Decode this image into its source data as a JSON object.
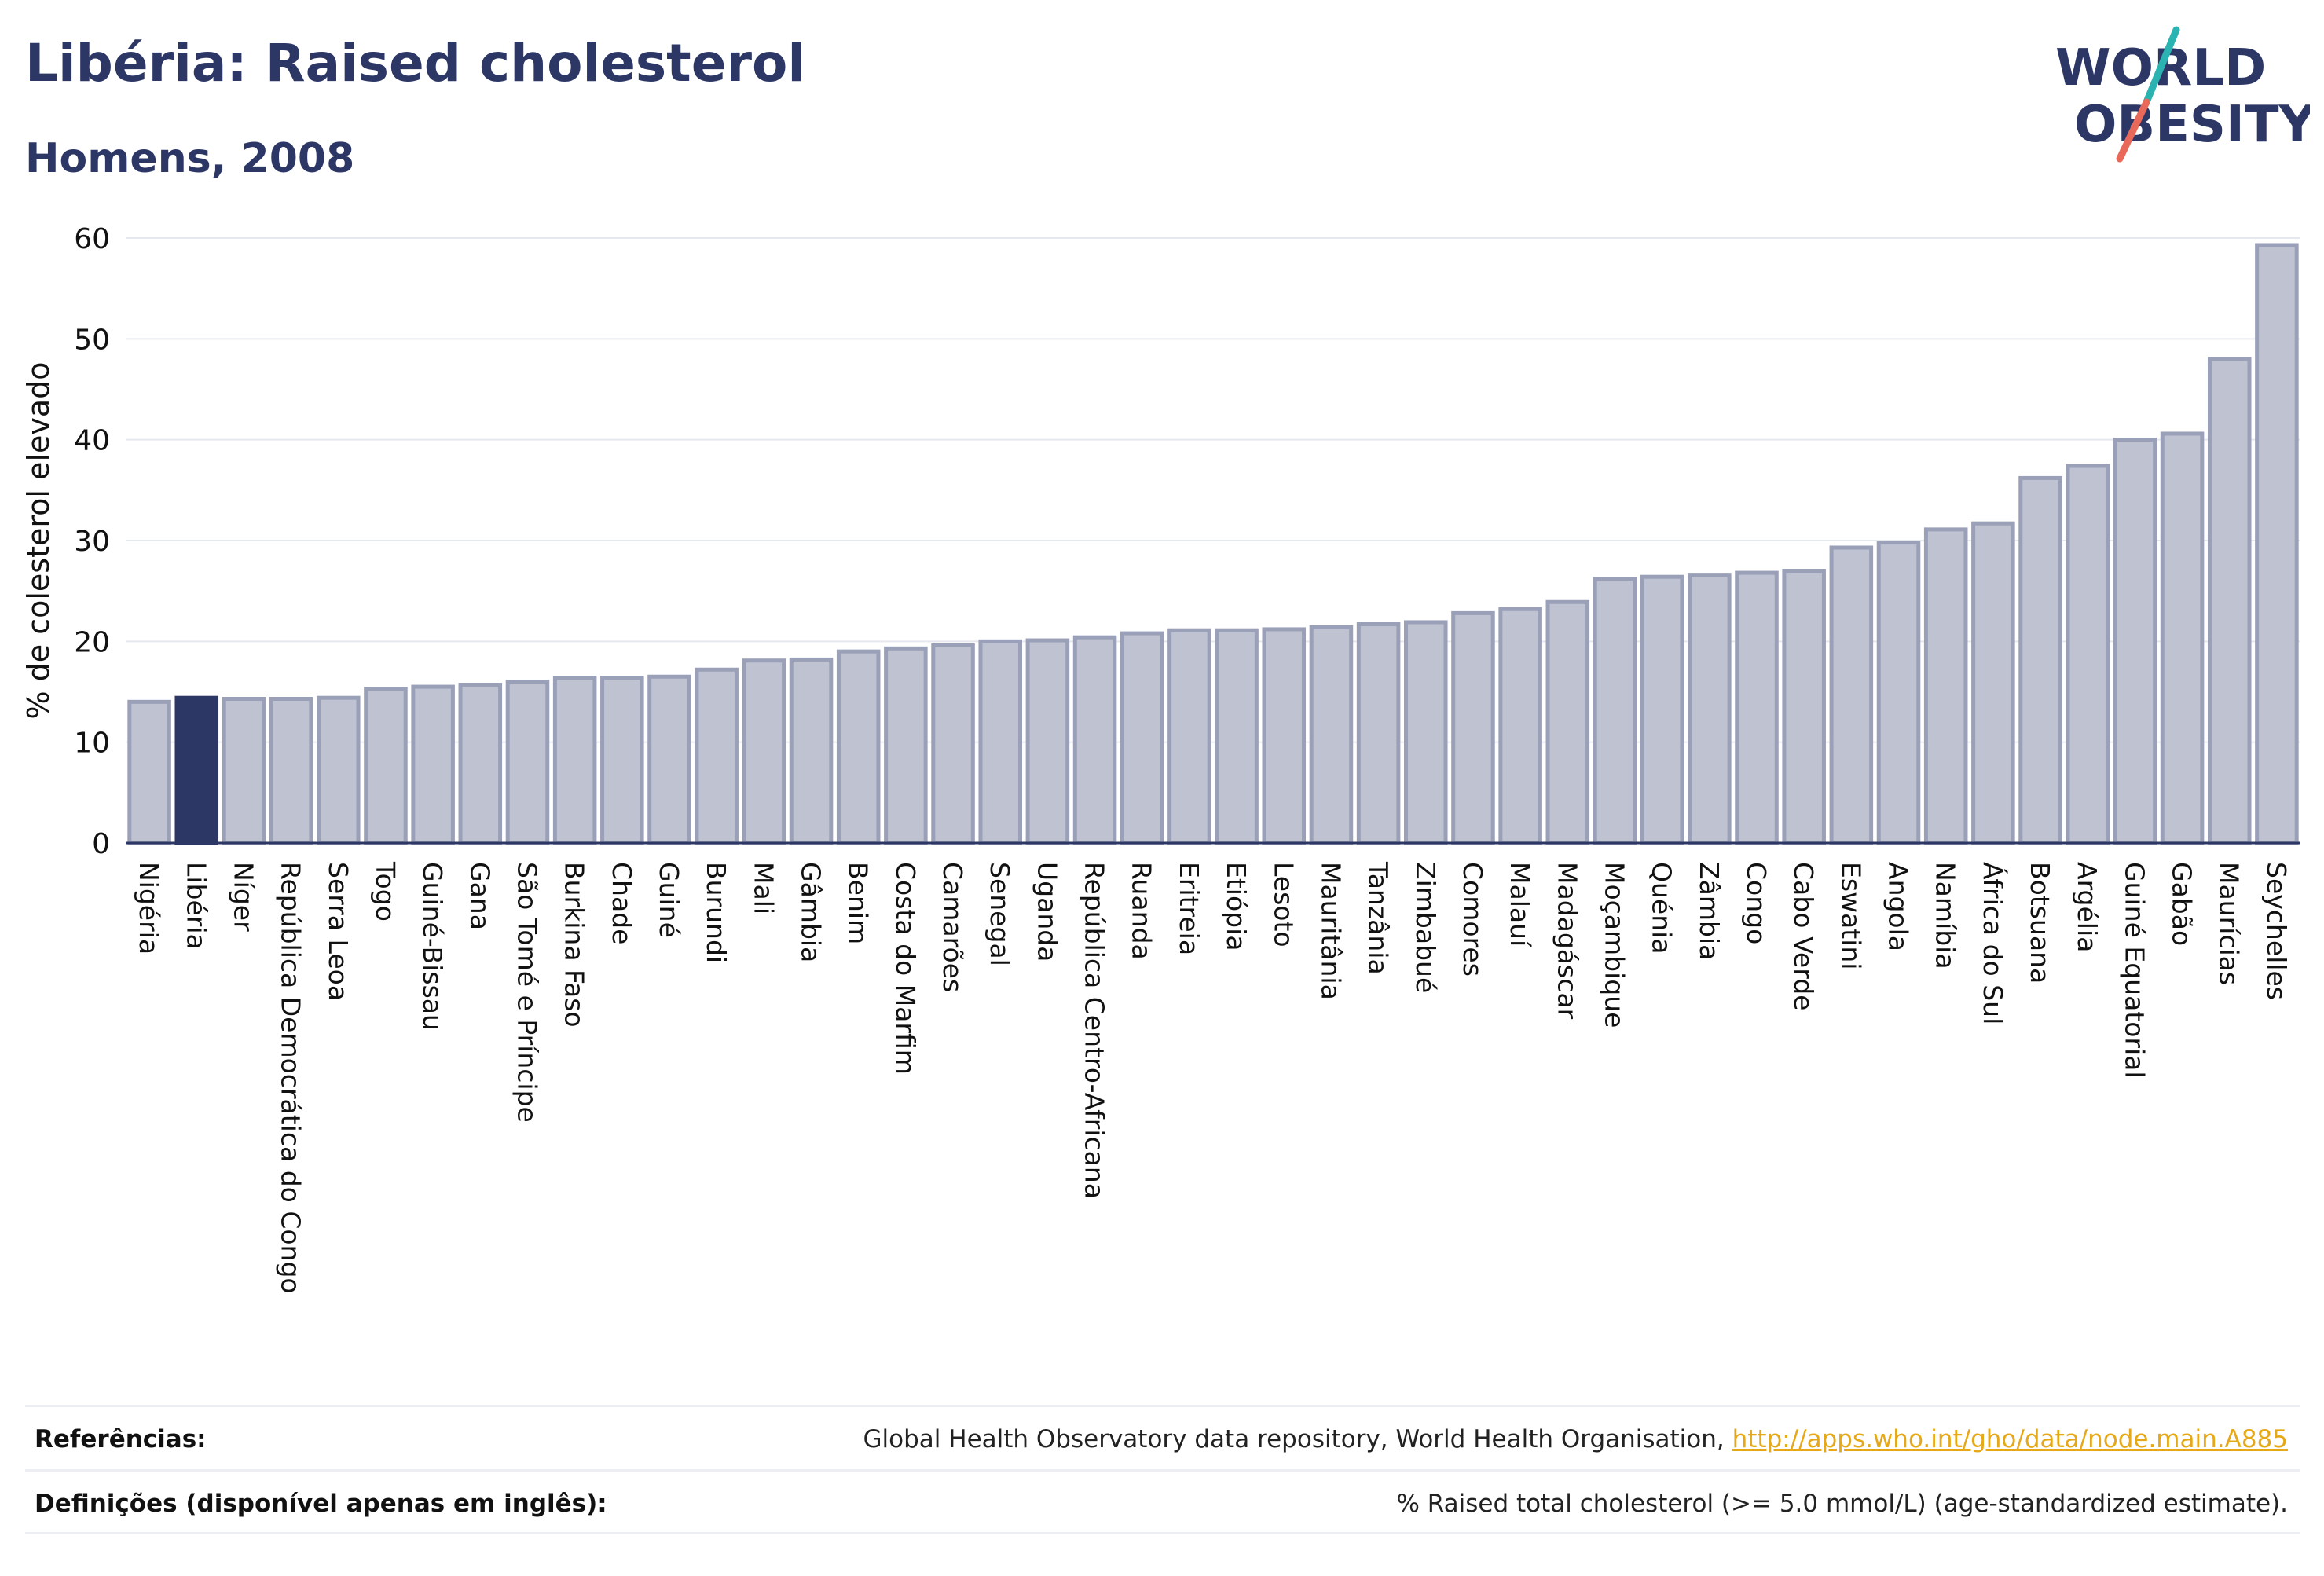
{
  "header": {
    "title": "Libéria: Raised cholesterol",
    "subtitle": "Homens, 2008"
  },
  "logo": {
    "line1": "WORLD",
    "line2": "OBESITY",
    "accent_teal": "#2bb3b1",
    "accent_red": "#e8685a",
    "color": "#2d3766"
  },
  "colors": {
    "highlight": "#2d3766",
    "bar_fill": "#bec2d1",
    "bar_stroke": "#9aa0b8",
    "grid": "#e6e8ef",
    "link": "#e6a817"
  },
  "chart_data": {
    "type": "bar",
    "ylabel": "% de colesterol elevado",
    "ylim": [
      0,
      60
    ],
    "yticks": [
      0,
      10,
      20,
      30,
      40,
      50,
      60
    ],
    "grid": true,
    "highlight": "Libéria",
    "categories": [
      "Nigéria",
      "Libéria",
      "Níger",
      "República Democrática do Congo",
      "Serra Leoa",
      "Togo",
      "Guiné-Bissau",
      "Gana",
      "São Tomé e Príncipe",
      "Burkina Faso",
      "Chade",
      "Guiné",
      "Burundi",
      "Mali",
      "Gâmbia",
      "Benim",
      "Costa do Marfim",
      "Camarões",
      "Senegal",
      "Uganda",
      "República Centro-Africana",
      "Ruanda",
      "Eritreia",
      "Etiópia",
      "Lesoto",
      "Mauritânia",
      "Tanzânia",
      "Zimbabué",
      "Comores",
      "Malauí",
      "Madagáscar",
      "Moçambique",
      "Quénia",
      "Zâmbia",
      "Congo",
      "Cabo Verde",
      "Eswatini",
      "Angola",
      "Namíbia",
      "África do Sul",
      "Botsuana",
      "Argélia",
      "Guiné Equatorial",
      "Gabão",
      "Maurícias",
      "Seychelles"
    ],
    "values": [
      14.0,
      14.4,
      14.3,
      14.3,
      14.4,
      15.3,
      15.5,
      15.7,
      16.0,
      16.4,
      16.4,
      16.5,
      17.2,
      18.1,
      18.2,
      19.0,
      19.3,
      19.6,
      20.0,
      20.1,
      20.4,
      20.8,
      21.1,
      21.1,
      21.2,
      21.4,
      21.7,
      21.9,
      22.8,
      23.2,
      23.9,
      26.2,
      26.4,
      26.6,
      26.8,
      27.0,
      29.3,
      29.8,
      31.1,
      31.7,
      36.2,
      37.4,
      40.0,
      40.6,
      48.0,
      59.3
    ]
  },
  "footer": {
    "references_label": "Referências:",
    "references_text": "Global Health Observatory data repository, World Health Organisation, ",
    "references_link": "http://apps.who.int/gho/data/node.main.A885",
    "definitions_label": "Definições (disponível apenas em inglês):",
    "definitions_text": "% Raised total cholesterol (>= 5.0 mmol/L) (age-standardized estimate)."
  }
}
